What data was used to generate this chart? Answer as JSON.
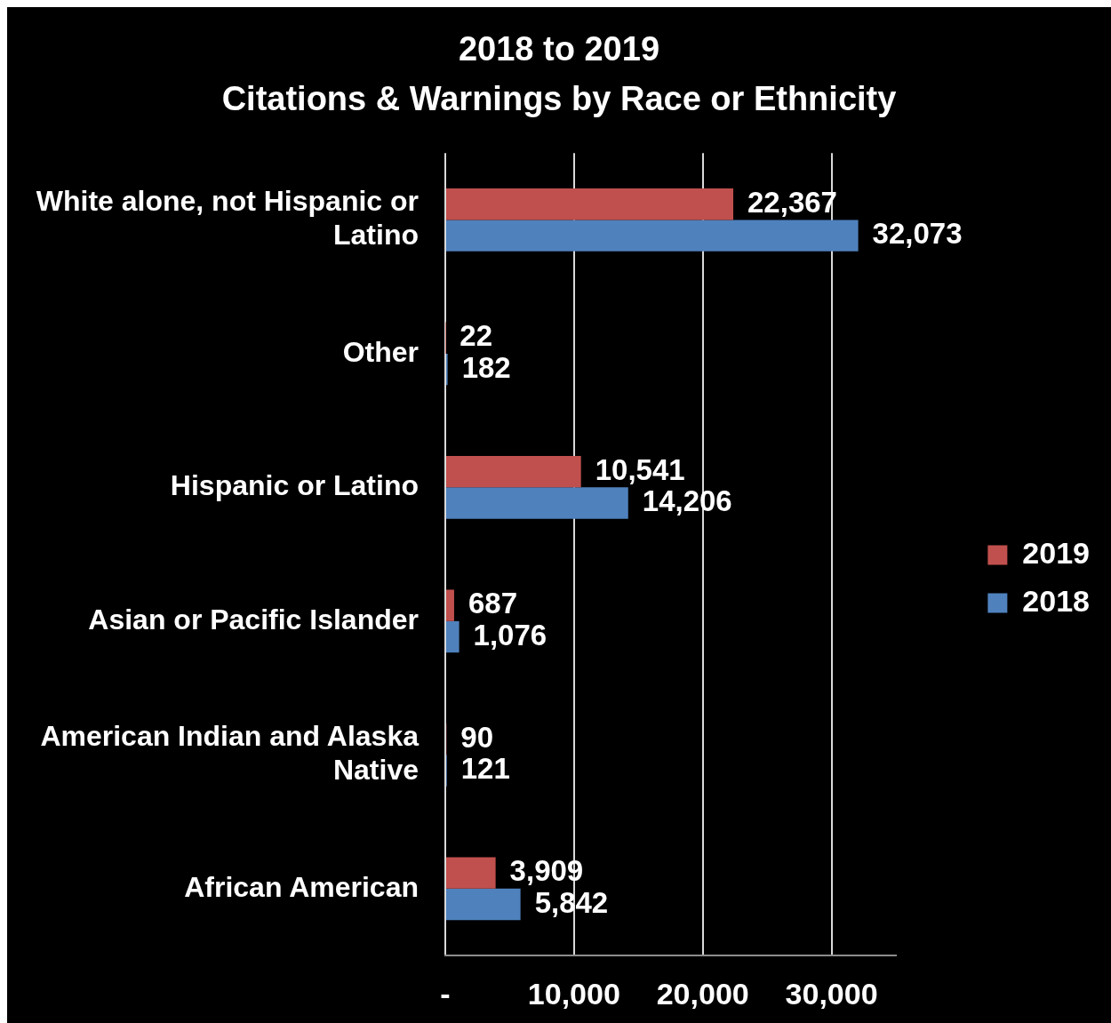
{
  "chart_data": {
    "type": "bar",
    "orientation": "horizontal",
    "title": "2018 to 2019",
    "subtitle": "Citations & Warnings by Race or Ethnicity",
    "categories": [
      "White alone, not Hispanic or Latino",
      "Other",
      "Hispanic or Latino",
      "Asian or Pacific Islander",
      "American Indian and Alaska Native",
      "African American"
    ],
    "series": [
      {
        "name": "2019",
        "color": "#c0504d",
        "values": [
          22367,
          22,
          10541,
          687,
          90,
          3909
        ],
        "value_labels": [
          "22,367",
          "22",
          "10,541",
          "687",
          "90",
          "3,909"
        ]
      },
      {
        "name": "2018",
        "color": "#4f81bd",
        "values": [
          32073,
          182,
          14206,
          1076,
          121,
          5842
        ],
        "value_labels": [
          "32,073",
          "182",
          "14,206",
          "1,076",
          "121",
          "5,842"
        ]
      }
    ],
    "xlim": [
      0,
      35000
    ],
    "xticks": [
      {
        "value": 0,
        "label": "-"
      },
      {
        "value": 10000,
        "label": "10,000"
      },
      {
        "value": 20000,
        "label": "20,000"
      },
      {
        "value": 30000,
        "label": "30,000"
      }
    ],
    "grid": "x",
    "legend": "right"
  }
}
